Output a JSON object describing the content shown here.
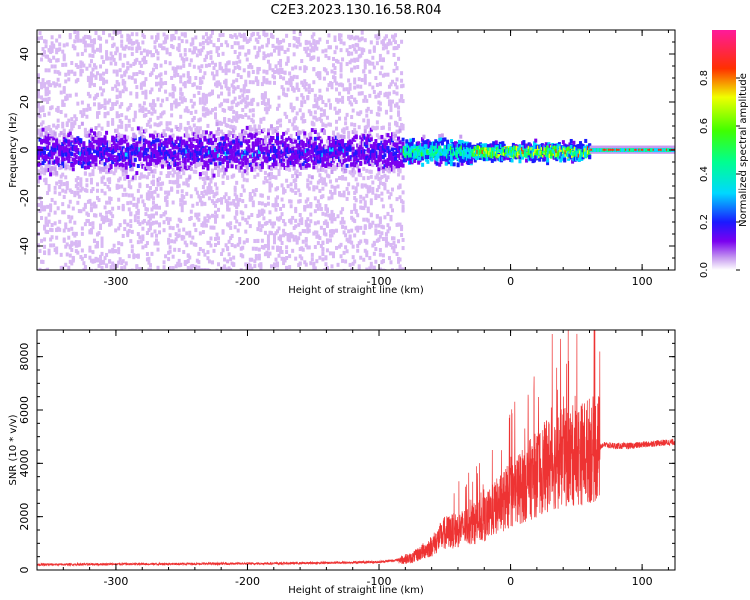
{
  "title": "C2E3.2023.130.16.58.R04",
  "chart_data": [
    {
      "type": "heatmap",
      "xlabel": "Height of straight line (km)",
      "ylabel": "Frequency (Hz)",
      "xlim": [
        -360,
        125
      ],
      "ylim": [
        -50,
        50
      ],
      "xticks": [
        -300,
        -200,
        -100,
        0,
        100
      ],
      "yticks": [
        -40,
        -20,
        0,
        20,
        40
      ],
      "grid": false,
      "colorbar": {
        "label": "Normalized spectral amplitude",
        "range": [
          0,
          1
        ],
        "ticks": [
          "0.0",
          "0.2",
          "0.4",
          "0.6",
          "0.8"
        ],
        "colormap": "rainbow"
      },
      "regions": [
        {
          "x_range": [
            -360,
            -82
          ],
          "description": "broadband low-amplitude scatter, dense band within ±15 Hz"
        },
        {
          "x_range": [
            -82,
            -30
          ],
          "description": "narrow band near 0 Hz, amplitude rising"
        },
        {
          "x_range": [
            -30,
            60
          ],
          "description": "narrow band near 0 Hz, high amplitude with gaps"
        },
        {
          "x_range": [
            60,
            125
          ],
          "description": "single steady line at 0 Hz, high amplitude"
        }
      ]
    },
    {
      "type": "line",
      "xlabel": "Height of straight line (km)",
      "ylabel": "SNR (10 * v/v)",
      "xlim": [
        -360,
        125
      ],
      "ylim": [
        0,
        9000
      ],
      "xticks": [
        -300,
        -200,
        -100,
        0,
        100
      ],
      "yticks": [
        0,
        2000,
        4000,
        6000,
        8000
      ],
      "grid": false,
      "series": [
        {
          "color": "#ee3333",
          "x": [
            -360,
            -300,
            -200,
            -150,
            -100,
            -85,
            -75,
            -60,
            -50,
            -40,
            -30,
            -20,
            -10,
            0,
            10,
            20,
            30,
            40,
            50,
            60,
            68,
            70,
            80,
            90,
            100,
            110,
            125
          ],
          "y": [
            200,
            220,
            240,
            260,
            300,
            380,
            450,
            900,
            1400,
            1500,
            1700,
            1900,
            2400,
            2800,
            3200,
            3600,
            4000,
            4200,
            4300,
            4500,
            4600,
            4700,
            4650,
            4650,
            4700,
            4750,
            4800
          ]
        }
      ]
    }
  ]
}
